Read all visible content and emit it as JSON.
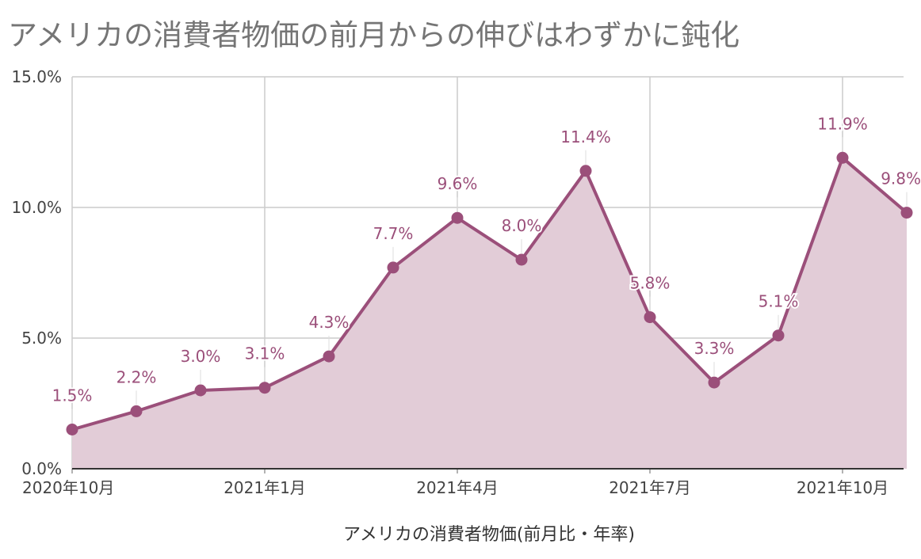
{
  "chart_data": {
    "type": "area",
    "title": "アメリカの消費者物価の前月からの伸びはわずかに鈍化",
    "xlabel": "アメリカの消費者物価(前月比・年率)",
    "ylabel": "",
    "x": [
      "2020-10",
      "2020-11",
      "2020-12",
      "2021-01",
      "2021-02",
      "2021-03",
      "2021-04",
      "2021-05",
      "2021-06",
      "2021-07",
      "2021-08",
      "2021-09",
      "2021-10",
      "2021-11"
    ],
    "x_tick_labels": [
      {
        "index": 0,
        "label": "2020年10月"
      },
      {
        "index": 3,
        "label": "2021年1月"
      },
      {
        "index": 6,
        "label": "2021年4月"
      },
      {
        "index": 9,
        "label": "2021年7月"
      },
      {
        "index": 12,
        "label": "2021年10月"
      }
    ],
    "series": [
      {
        "name": "",
        "values": [
          1.5,
          2.2,
          3.0,
          3.1,
          4.3,
          7.7,
          9.6,
          8.0,
          11.4,
          5.8,
          3.3,
          5.1,
          11.9,
          9.8
        ],
        "labels": [
          "1.5%",
          "2.2%",
          "3.0%",
          "3.1%",
          "4.3%",
          "7.7%",
          "9.6%",
          "8.0%",
          "11.4%",
          "5.8%",
          "3.3%",
          "5.1%",
          "11.9%",
          "9.8%"
        ],
        "color": "#9b4f7a",
        "fill_color": "#e2ccd7"
      }
    ],
    "ylim": [
      0,
      15
    ],
    "y_ticks": [
      {
        "value": 0,
        "label": "0.0%"
      },
      {
        "value": 5,
        "label": "5.0%"
      },
      {
        "value": 10,
        "label": "10.0%"
      },
      {
        "value": 15,
        "label": "15.0%"
      }
    ],
    "grid": true,
    "legend": "none"
  }
}
